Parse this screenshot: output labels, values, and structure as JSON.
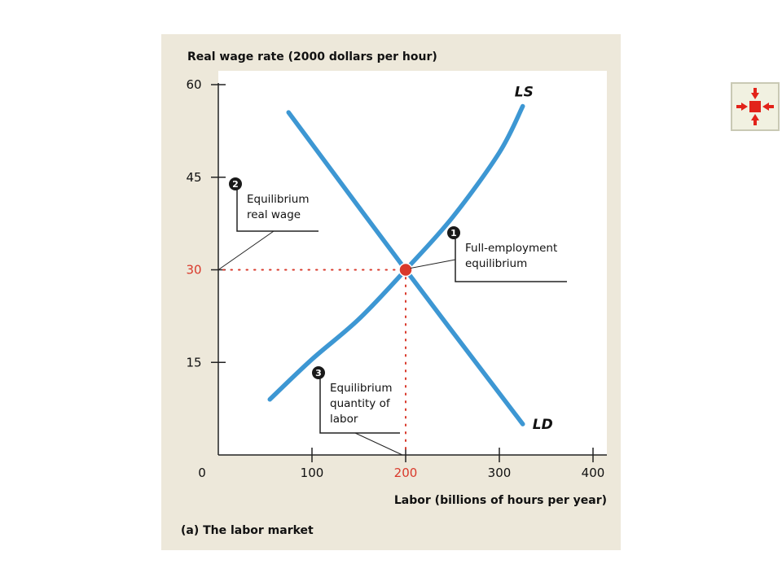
{
  "chart_data": {
    "type": "line",
    "ylabel": "Real wage rate (2000 dollars per hour)",
    "xlabel": "Labor (billions of hours per year)",
    "caption": "(a) The labor market",
    "origin_label": "0",
    "xlim": [
      0,
      400
    ],
    "ylim": [
      0,
      60
    ],
    "x_ticks": [
      "100",
      "200",
      "300",
      "400"
    ],
    "y_ticks": [
      "15",
      "30",
      "45",
      "60"
    ],
    "highlight_x": "200",
    "highlight_y": "30",
    "series": [
      {
        "name": "LS",
        "points": [
          [
            55,
            9
          ],
          [
            100,
            15.5
          ],
          [
            150,
            22
          ],
          [
            200,
            30
          ],
          [
            250,
            38.5
          ],
          [
            300,
            49
          ],
          [
            325,
            56.5
          ]
        ]
      },
      {
        "name": "LD",
        "points": [
          [
            75,
            55.5
          ],
          [
            200,
            30
          ],
          [
            325,
            5
          ]
        ]
      }
    ],
    "equilibrium": {
      "x": 200,
      "y": 30
    },
    "annotations": [
      {
        "number": "1",
        "lines": [
          "Full-employment",
          "equilibrium"
        ]
      },
      {
        "number": "2",
        "lines": [
          "Equilibrium",
          "real wage"
        ]
      },
      {
        "number": "3",
        "lines": [
          "Equilibrium",
          "quantity of",
          "labor"
        ]
      }
    ],
    "colors": {
      "curve": "#3d97d3",
      "equilibrium": "#d9392b",
      "background": "#ede8da"
    }
  },
  "nav_button": {
    "icon": "collapse-arrows-icon",
    "color": "#e2231a"
  }
}
